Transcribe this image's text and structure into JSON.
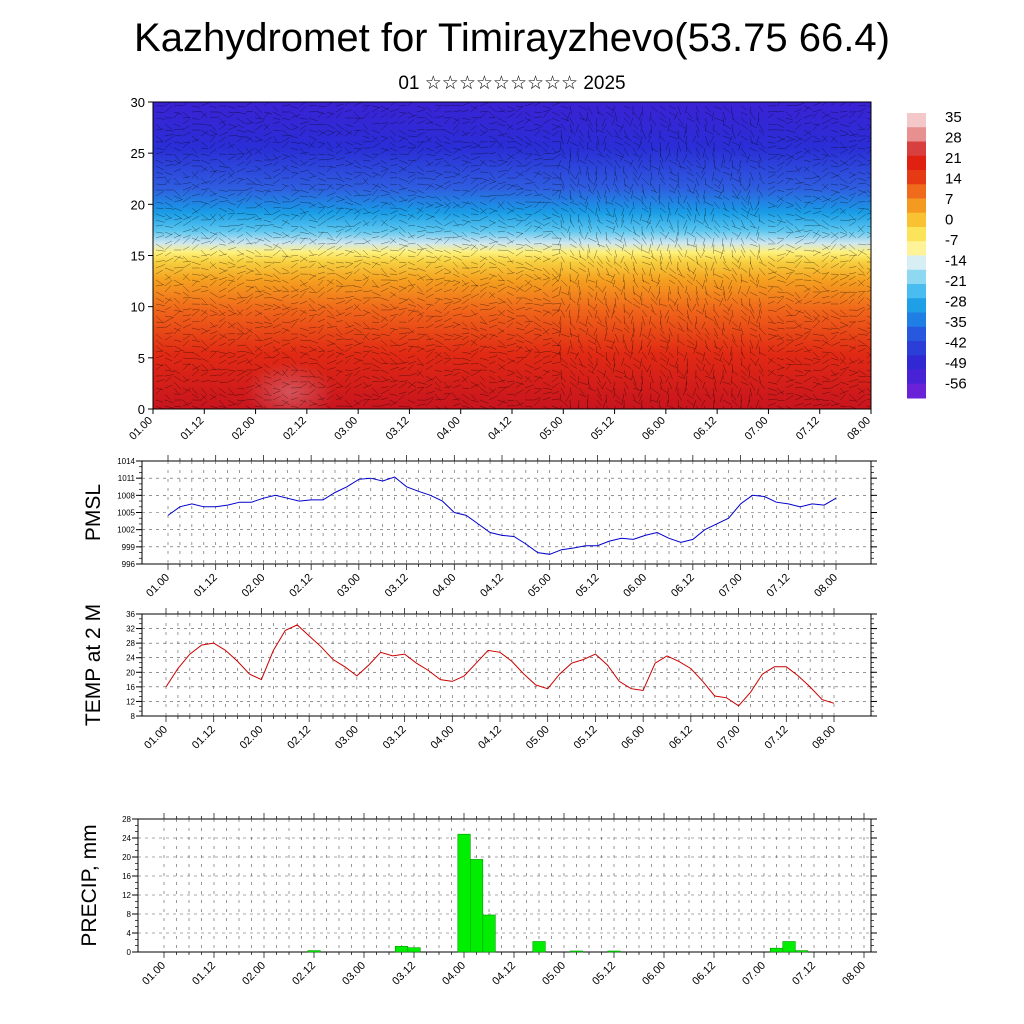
{
  "header": {
    "title": "Kazhydromet for Timirayzhevo(53.75 66.4)",
    "subtitle": "01 ☆☆☆☆☆☆☆☆☆ 2025"
  },
  "time_labels": [
    "01.00",
    "01.12",
    "02.00",
    "02.12",
    "03.00",
    "03.12",
    "04.00",
    "04.12",
    "05.00",
    "05.12",
    "06.00",
    "06.12",
    "07.00",
    "07.12",
    "08.00"
  ],
  "colorbar": {
    "labels": [
      "35",
      "28",
      "21",
      "14",
      "7",
      "0",
      "-7",
      "-14",
      "-21",
      "-28",
      "-35",
      "-42",
      "-49",
      "-56"
    ]
  },
  "chart_data": [
    {
      "type": "heatmap",
      "ylim": [
        0,
        30
      ],
      "yticks": [
        0,
        5,
        10,
        15,
        20,
        25,
        30
      ],
      "x": [
        "01.00",
        "01.12",
        "02.00",
        "02.12",
        "03.00",
        "03.12",
        "04.00",
        "04.12",
        "05.00",
        "05.12",
        "06.00",
        "06.12",
        "07.00",
        "07.12",
        "08.00"
      ],
      "colorbar_range": [
        -56,
        35
      ],
      "colorbar_labels": [
        "35",
        "28",
        "21",
        "14",
        "7",
        "0",
        "-7",
        "-14",
        "-21",
        "-28",
        "-35",
        "-42",
        "-49",
        "-56"
      ]
    },
    {
      "type": "line",
      "ylabel": "PMSL",
      "ylim": [
        996,
        1014
      ],
      "yticks": [
        996,
        999,
        1002,
        1005,
        1008,
        1011,
        1014
      ],
      "x_start_index": 0,
      "x_step_hours": 3,
      "color": "#0000cc",
      "values": [
        1004.5,
        1006,
        1006.5,
        1006,
        1006,
        1006.3,
        1006.8,
        1006.8,
        1007.5,
        1008,
        1007.5,
        1007,
        1007.2,
        1007.2,
        1008.5,
        1009.5,
        1010.8,
        1011,
        1010.5,
        1011.2,
        1009.5,
        1008.7,
        1008,
        1007,
        1005,
        1004.5,
        1003,
        1001.5,
        1001,
        1000.8,
        999.5,
        998,
        997.7,
        998.5,
        998.8,
        999.2,
        999.2,
        1000,
        1000.5,
        1000.3,
        1001,
        1001.5,
        1000.5,
        999.8,
        1000.3,
        1002,
        1003,
        1004,
        1006.5,
        1008,
        1007.8,
        1006.8,
        1006.5,
        1006,
        1006.5,
        1006.3,
        1007.5
      ]
    },
    {
      "type": "line",
      "ylabel": "TEMP at 2 M",
      "ylim": [
        8,
        36
      ],
      "yticks": [
        8,
        12,
        16,
        20,
        24,
        28,
        32,
        36
      ],
      "color": "#cc0000",
      "values": [
        16,
        21,
        25,
        27.5,
        28,
        26,
        23,
        19.5,
        18,
        26,
        31.5,
        33,
        30,
        27,
        23.5,
        21.5,
        19,
        22,
        25.5,
        24.5,
        25,
        22.5,
        20.5,
        18,
        17.5,
        19,
        22.5,
        26,
        25.5,
        23,
        19.5,
        16.5,
        15.5,
        19.5,
        22.5,
        23.5,
        25,
        22,
        17.5,
        15.5,
        15,
        22.5,
        24.5,
        23,
        21,
        17.5,
        13.5,
        13,
        10.8,
        14.5,
        19.5,
        21.5,
        21.5,
        19,
        16,
        12.5,
        11.5
      ]
    },
    {
      "type": "bar",
      "ylabel": "PRECIP, mm",
      "ylim": [
        0,
        28
      ],
      "yticks": [
        0,
        4,
        8,
        12,
        16,
        20,
        24,
        28
      ],
      "color": "#00ee00",
      "values": [
        0,
        0,
        0,
        0,
        0,
        0,
        0,
        0,
        0,
        0,
        0,
        0,
        0.3,
        0,
        0,
        0,
        0,
        0,
        0,
        1.2,
        0.9,
        0,
        0,
        0,
        24.8,
        19.5,
        7.8,
        0,
        0,
        0,
        2.2,
        0,
        0,
        0.2,
        0,
        0,
        0.2,
        0,
        0,
        0,
        0,
        0,
        0,
        0,
        0,
        0,
        0,
        0,
        0,
        0.8,
        2.2,
        0.3,
        0,
        0,
        0,
        0,
        0
      ]
    }
  ]
}
